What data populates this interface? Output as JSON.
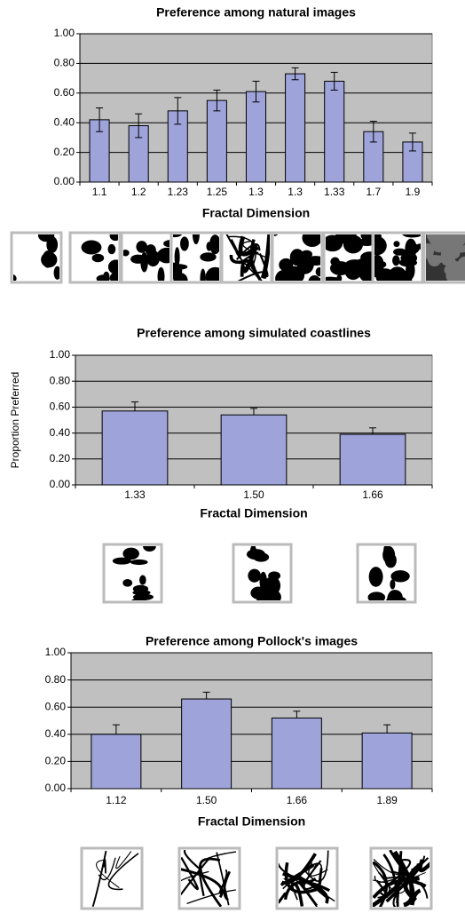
{
  "chart_data": [
    {
      "type": "bar",
      "title": "Preference among natural images",
      "x_label": "Fractal Dimension",
      "categories": [
        "1.1",
        "1.2",
        "1.23",
        "1.25",
        "1.3",
        "1.3",
        "1.33",
        "1.7",
        "1.9"
      ],
      "values": [
        0.42,
        0.38,
        0.48,
        0.55,
        0.61,
        0.73,
        0.68,
        0.34,
        0.27
      ],
      "errors": [
        0.08,
        0.08,
        0.09,
        0.07,
        0.07,
        0.04,
        0.06,
        0.07,
        0.06
      ],
      "error_bars": "both",
      "color": "#9ea3da",
      "grid": true,
      "ylim": [
        0,
        1
      ],
      "yticks": [
        {
          "value": 0,
          "label": "0.00"
        },
        {
          "value": 0.2,
          "label": "0.20"
        },
        {
          "value": 0.4,
          "label": "0.40"
        },
        {
          "value": 0.6,
          "label": "0.60"
        },
        {
          "value": 0.8,
          "label": "0.80"
        },
        {
          "value": 1,
          "label": "1.00"
        }
      ]
    },
    {
      "type": "bar",
      "title": "Preference among simulated coastlines",
      "x_label": "Fractal Dimension",
      "y_label": "Proportion Preferred",
      "categories": [
        "1.33",
        "1.50",
        "1.66"
      ],
      "values": [
        0.57,
        0.54,
        0.39
      ],
      "errors": [
        0.07,
        0.05,
        0.05
      ],
      "error_bars": "up",
      "color": "#9ea3da",
      "grid": true,
      "ylim": [
        0,
        1
      ],
      "yticks": [
        {
          "value": 0,
          "label": "0.00"
        },
        {
          "value": 0.2,
          "label": "0.20"
        },
        {
          "value": 0.4,
          "label": "0.40"
        },
        {
          "value": 0.6,
          "label": "0.60"
        },
        {
          "value": 0.8,
          "label": "0.80"
        },
        {
          "value": 1,
          "label": "1.00"
        }
      ]
    },
    {
      "type": "bar",
      "title": "Preference among Pollock's images",
      "x_label": "Fractal Dimension",
      "categories": [
        "1.12",
        "1.50",
        "1.66",
        "1.89"
      ],
      "values": [
        0.4,
        0.66,
        0.52,
        0.41
      ],
      "errors": [
        0.07,
        0.05,
        0.05,
        0.06
      ],
      "error_bars": "up",
      "color": "#9ea3da",
      "grid": true,
      "ylim": [
        0,
        1
      ],
      "yticks": [
        {
          "value": 0,
          "label": "0.00"
        },
        {
          "value": 0.2,
          "label": "0.20"
        },
        {
          "value": 0.4,
          "label": "0.40"
        },
        {
          "value": 0.6,
          "label": "0.60"
        },
        {
          "value": 0.8,
          "label": "0.80"
        },
        {
          "value": 1,
          "label": "1.00"
        }
      ]
    }
  ]
}
